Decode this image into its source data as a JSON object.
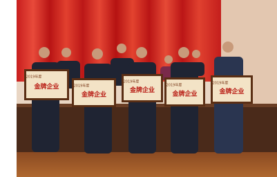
{
  "photo": {
    "plaques": [
      {
        "year": "2019年度",
        "title": "金牌企业"
      },
      {
        "year": "2019年度",
        "title": "金牌企业"
      },
      {
        "year": "2019年度",
        "title": "金牌企业"
      },
      {
        "year": "2019年度",
        "title": "金牌企业"
      },
      {
        "year": "2019年度",
        "title": "金牌企业"
      }
    ]
  }
}
